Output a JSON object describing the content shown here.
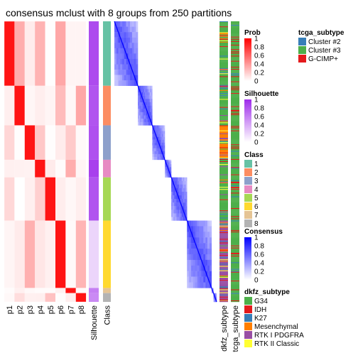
{
  "chart_data": {
    "type": "heatmap",
    "title": "consensus mclust with 8 groups from 250 partitions",
    "partition_columns": [
      "p1",
      "p2",
      "p3",
      "p4",
      "p5",
      "p6",
      "p7",
      "p8"
    ],
    "annotation_columns": [
      "Silhouette",
      "Class"
    ],
    "consensus_annotation_columns": [
      "dkfz_subtype",
      "tcga_subtype"
    ],
    "classes": [
      {
        "label": "1",
        "color": "#66C2A5",
        "size": 88,
        "prob_col": 0
      },
      {
        "label": "2",
        "color": "#FC8D62",
        "size": 54,
        "prob_col": 1
      },
      {
        "label": "3",
        "color": "#8DA0CB",
        "size": 47,
        "prob_col": 2
      },
      {
        "label": "4",
        "color": "#E78AC3",
        "size": 24,
        "prob_col": 3
      },
      {
        "label": "5",
        "color": "#A6D854",
        "size": 59,
        "prob_col": 4
      },
      {
        "label": "6",
        "color": "#FFD92F",
        "size": 92,
        "prob_col": 5
      },
      {
        "label": "7",
        "color": "#E5C494",
        "size": 7,
        "prob_col": 6
      },
      {
        "label": "8",
        "color": "#B3B3B3",
        "size": 12,
        "prob_col": 7
      }
    ],
    "prob_legend": {
      "title": "Prob",
      "ticks": [
        "1",
        "0.8",
        "0.6",
        "0.4",
        "0.2",
        "0"
      ],
      "color_low": "#FFFFFF",
      "color_high": "#FF0000"
    },
    "silhouette_legend": {
      "title": "Silhouette",
      "ticks": [
        "1",
        "0.8",
        "0.6",
        "0.4",
        "0.2",
        "0"
      ],
      "color_low": "#FFFFFF",
      "color_high": "#9E2BEB"
    },
    "class_legend": {
      "title": "Class",
      "labels": [
        "1",
        "2",
        "3",
        "4",
        "5",
        "6",
        "7",
        "8"
      ]
    },
    "consensus_legend": {
      "title": "Consensus",
      "ticks": [
        "1",
        "0.8",
        "0.6",
        "0.4",
        "0.2",
        "0"
      ],
      "color_low": "#FFFFFF",
      "color_high": "#0000FF"
    },
    "dkfz_legend": {
      "title": "dkfz_subtype",
      "items": [
        {
          "label": "G34",
          "color": "#4DAF4A"
        },
        {
          "label": "IDH",
          "color": "#E41A1C"
        },
        {
          "label": "K27",
          "color": "#377EB8"
        },
        {
          "label": "Mesenchymal",
          "color": "#FF7F00"
        },
        {
          "label": "RTK I PDGFRA",
          "color": "#984EA3"
        },
        {
          "label": "RTK II Classic",
          "color": "#FFFF33"
        }
      ]
    },
    "tcga_legend": {
      "title": "tcga_subtype",
      "items": [
        {
          "label": "Cluster #2",
          "color": "#377EB8"
        },
        {
          "label": "Cluster #3",
          "color": "#4DAF4A"
        },
        {
          "label": "G-CIMP+",
          "color": "#E41A1C"
        }
      ]
    }
  }
}
